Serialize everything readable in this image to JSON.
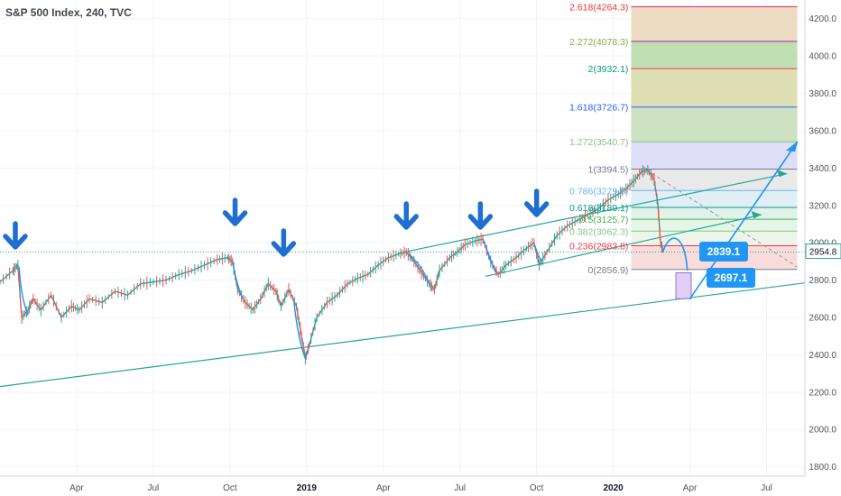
{
  "chart_data": {
    "type": "line",
    "title": "S&P 500 Index, 240, TVC",
    "ylim": [
      1750,
      4300
    ],
    "yticks": [
      1800,
      2000,
      2200,
      2400,
      2600,
      2800,
      3000,
      3200,
      3400,
      3600,
      3800,
      4000,
      4200
    ],
    "xticks": [
      {
        "label": "Apr",
        "x": 3,
        "bold": false
      },
      {
        "label": "Jul",
        "x": 6,
        "bold": false
      },
      {
        "label": "Oct",
        "x": 9,
        "bold": false
      },
      {
        "label": "2019",
        "x": 12,
        "bold": true
      },
      {
        "label": "Apr",
        "x": 15,
        "bold": false
      },
      {
        "label": "Jul",
        "x": 18,
        "bold": false
      },
      {
        "label": "Oct",
        "x": 21,
        "bold": false
      },
      {
        "label": "2020",
        "x": 24,
        "bold": true
      },
      {
        "label": "Apr",
        "x": 27,
        "bold": false
      },
      {
        "label": "Jul",
        "x": 30,
        "bold": false
      }
    ],
    "xrange": [
      0,
      31.5
    ],
    "last_price": "2954.8",
    "series": [
      {
        "values": [
          [
            0,
            2790
          ],
          [
            0.5,
            2850
          ],
          [
            0.7,
            2880
          ],
          [
            0.85,
            2600
          ],
          [
            1.1,
            2640
          ],
          [
            1.3,
            2700
          ],
          [
            1.6,
            2640
          ],
          [
            2.0,
            2720
          ],
          [
            2.4,
            2600
          ],
          [
            2.8,
            2660
          ],
          [
            3.1,
            2640
          ],
          [
            3.5,
            2700
          ],
          [
            4.0,
            2680
          ],
          [
            4.5,
            2740
          ],
          [
            5.0,
            2720
          ],
          [
            5.5,
            2780
          ],
          [
            6.0,
            2790
          ],
          [
            6.5,
            2800
          ],
          [
            7.0,
            2830
          ],
          [
            7.5,
            2850
          ],
          [
            8.0,
            2880
          ],
          [
            8.5,
            2910
          ],
          [
            8.9,
            2920
          ],
          [
            9.1,
            2900
          ],
          [
            9.3,
            2750
          ],
          [
            9.6,
            2680
          ],
          [
            9.9,
            2640
          ],
          [
            10.2,
            2700
          ],
          [
            10.5,
            2780
          ],
          [
            10.8,
            2740
          ],
          [
            11.0,
            2660
          ],
          [
            11.3,
            2750
          ],
          [
            11.6,
            2660
          ],
          [
            11.8,
            2500
          ],
          [
            11.95,
            2380
          ],
          [
            12.1,
            2450
          ],
          [
            12.4,
            2600
          ],
          [
            12.8,
            2680
          ],
          [
            13.2,
            2720
          ],
          [
            13.6,
            2780
          ],
          [
            14.0,
            2810
          ],
          [
            14.4,
            2830
          ],
          [
            14.8,
            2880
          ],
          [
            15.2,
            2920
          ],
          [
            15.6,
            2940
          ],
          [
            15.9,
            2950
          ],
          [
            16.2,
            2900
          ],
          [
            16.5,
            2840
          ],
          [
            16.8,
            2780
          ],
          [
            17.0,
            2750
          ],
          [
            17.2,
            2850
          ],
          [
            17.6,
            2920
          ],
          [
            17.9,
            2950
          ],
          [
            18.2,
            2990
          ],
          [
            18.6,
            3010
          ],
          [
            18.9,
            3020
          ],
          [
            19.2,
            2900
          ],
          [
            19.5,
            2830
          ],
          [
            19.8,
            2880
          ],
          [
            20.2,
            2920
          ],
          [
            20.6,
            2970
          ],
          [
            20.9,
            3000
          ],
          [
            21.1,
            2880
          ],
          [
            21.4,
            2950
          ],
          [
            21.8,
            3040
          ],
          [
            22.2,
            3090
          ],
          [
            22.6,
            3120
          ],
          [
            23.0,
            3150
          ],
          [
            23.4,
            3180
          ],
          [
            23.8,
            3230
          ],
          [
            24.2,
            3260
          ],
          [
            24.5,
            3290
          ],
          [
            24.8,
            3330
          ],
          [
            25.1,
            3380
          ],
          [
            25.35,
            3390
          ],
          [
            25.6,
            3340
          ],
          [
            25.75,
            3200
          ],
          [
            25.85,
            3000
          ],
          [
            25.95,
            2954.8
          ]
        ]
      }
    ],
    "fibonacci": {
      "x_start": 24.7,
      "x_end": 31.2,
      "levels": [
        {
          "label": "0(2856.9)",
          "ratio": 0,
          "price": 2856.9,
          "line": "#787b86",
          "fill": "#f7d6d6"
        },
        {
          "label": "0.236(2983.8)",
          "ratio": 0.236,
          "price": 2983.8,
          "line": "#f23645",
          "fill": "#eaf3e8"
        },
        {
          "label": "0.382(3062.3)",
          "ratio": 0.382,
          "price": 3062.3,
          "line": "#81c784",
          "fill": "#e1f3e3"
        },
        {
          "label": "0.5(3125.7)",
          "ratio": 0.5,
          "price": 3125.7,
          "line": "#4caf50",
          "fill": "#dbf1e8"
        },
        {
          "label": "0.618(3189.1)",
          "ratio": 0.618,
          "price": 3189.1,
          "line": "#089981",
          "fill": "#daecf3"
        },
        {
          "label": "0.786(3279.6)",
          "ratio": 0.786,
          "price": 3279.6,
          "line": "#64b5f6",
          "fill": "#e5e5e5"
        },
        {
          "label": "1(3394.5)",
          "ratio": 1,
          "price": 3394.5,
          "line": "#787b86",
          "fill": "#d9d8f7"
        },
        {
          "label": "1.272(3540.7)",
          "ratio": 1.272,
          "price": 3540.7,
          "line": "#81c784",
          "fill": "#c5dcb7"
        },
        {
          "label": "1.618(3726.7)",
          "ratio": 1.618,
          "price": 3726.7,
          "line": "#2962ff",
          "fill": "#d8d9a7"
        },
        {
          "label": "2(3932.1)",
          "ratio": 2,
          "price": 3932.1,
          "line": "#f23645",
          "fill": "#b5d9a5"
        },
        {
          "label": "2.272(4078.3)",
          "ratio": 2.272,
          "price": 4078.3,
          "line": "#9c27b0",
          "fill": "#e9d6ba"
        },
        {
          "label": "2.618(4264.3)",
          "ratio": 2.618,
          "price": 4264.3,
          "line": "#e91e63",
          "fill": "#ffffff"
        }
      ],
      "label_colors": [
        "#787b86",
        "#f23645",
        "#81c784",
        "#4caf50",
        "#089981",
        "#64b5f6",
        "#787b86",
        "#81c784",
        "#2962ff",
        "#089981",
        "#7cb342",
        "#e53935"
      ]
    },
    "callouts": [
      {
        "label": "2839.1",
        "price": 2839.1
      },
      {
        "label": "2697.1",
        "price": 2697.1
      }
    ],
    "reference_line_price": 2950,
    "arrow_markers_x": [
      0.6,
      9.2,
      11.1,
      15.9,
      18.8,
      21.0
    ]
  }
}
